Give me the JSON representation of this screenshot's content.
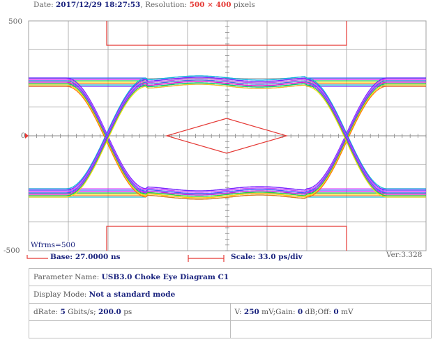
{
  "header": {
    "date_label": "Date: ",
    "date_value": "2017/12/29 18:27:53",
    "sep": ", ",
    "resolution_label": "Resolution: ",
    "resolution_value": "500 × 400",
    "resolution_unit": " pixels"
  },
  "y_axis": {
    "top_label": "500",
    "mid_label": "0",
    "bottom_label": "-500"
  },
  "plot": {
    "wfrms": "Wfrms=500",
    "base_label": "Base: ",
    "base_value": "27.0000 ns",
    "scale_label": "Scale: ",
    "scale_value": "33.0 ps/div",
    "version": "Ver:3.328"
  },
  "info": {
    "param_label": "Parameter Name: ",
    "param_value": "USB3.0 Choke Eye Diagram C1",
    "display_label": "Display Mode: ",
    "display_value": "Not a standard mode",
    "drate_label": "dRate: ",
    "drate_value": "5",
    "drate_unit": " Gbits/s; ",
    "ui_value": "200.0",
    "ui_unit": " ps",
    "v_label": "V: ",
    "v_value": "250",
    "v_unit": " mV;Gain: ",
    "gain_value": "0",
    "gain_unit": " dB;Off: ",
    "off_value": "0",
    "off_unit": " mV"
  },
  "colors": {
    "grid": "#a0a0a0",
    "mask": "#e53935",
    "label_blue": "#1a237e",
    "traces": [
      "#2962ff",
      "#d500f9",
      "#00c853",
      "#ffd600",
      "#ff6d00",
      "#00b8d4",
      "#651fff",
      "#e040fb"
    ]
  }
}
